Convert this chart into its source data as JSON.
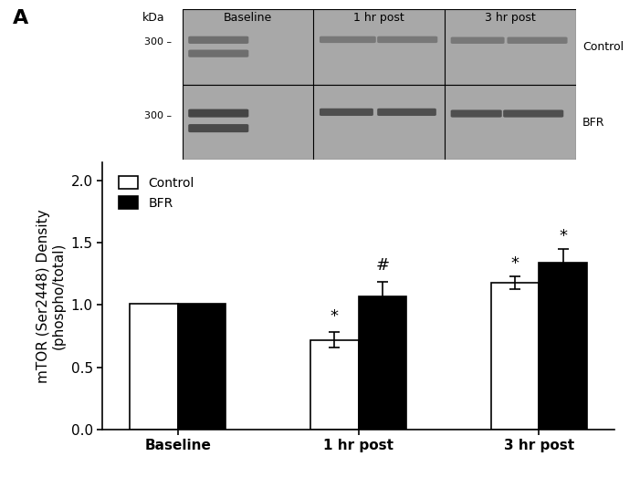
{
  "title_label": "A",
  "categories": [
    "Baseline",
    "1 hr post",
    "3 hr post"
  ],
  "control_values": [
    1.01,
    0.72,
    1.18
  ],
  "bfr_values": [
    1.01,
    1.07,
    1.34
  ],
  "control_errors": [
    0.0,
    0.06,
    0.05
  ],
  "bfr_errors": [
    0.0,
    0.12,
    0.11
  ],
  "ylabel": "mTOR (Ser2448) Density\n(phospho/total)",
  "ylim": [
    0,
    2.15
  ],
  "yticks": [
    0,
    0.5,
    1.0,
    1.5,
    2.0
  ],
  "bar_width": 0.32,
  "group_positions": [
    1.0,
    2.2,
    3.4
  ],
  "xlim": [
    0.5,
    3.9
  ],
  "control_color": "#ffffff",
  "bfr_color": "#000000",
  "edge_color": "#000000",
  "legend_labels": [
    "Control",
    "BFR"
  ],
  "blot_bg_color": "#a8a8a8",
  "blot_band_ctrl_color": "#686868",
  "blot_band_bfr_color": "#404040",
  "blot_header": [
    "Baseline",
    "1 hr post",
    "3 hr post"
  ],
  "kda_label": "kDa",
  "kda_value": "300",
  "blot_labels_right": [
    "Control",
    "BFR"
  ],
  "background_color": "#ffffff",
  "annot_fontsize": 13
}
